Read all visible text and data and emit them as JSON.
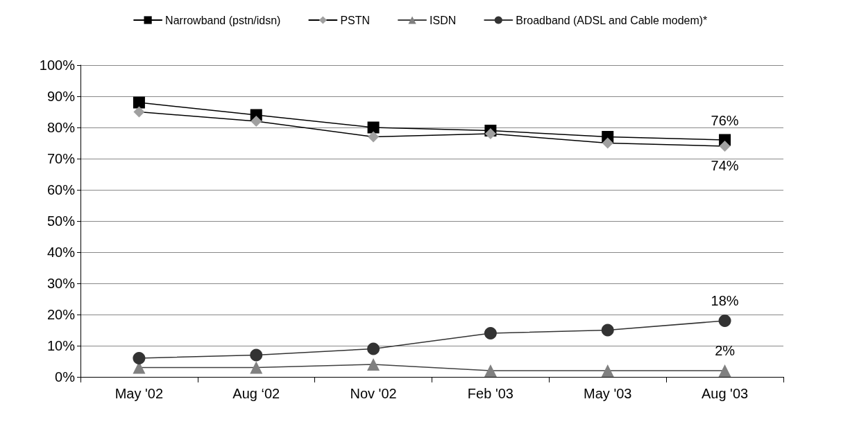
{
  "chart_data": {
    "type": "line",
    "categories": [
      "May '02",
      "Aug ‘02",
      "Nov '02",
      "Feb '03",
      "May '03",
      "Aug '03"
    ],
    "series": [
      {
        "name": "Narrowband (pstn/idsn)",
        "color": "#000000",
        "marker": "square",
        "values": [
          88,
          84,
          80,
          79,
          77,
          76
        ],
        "value_labels": [
          null,
          null,
          null,
          null,
          null,
          "76%"
        ]
      },
      {
        "name": "PSTN",
        "color": "#a0a0a0",
        "marker": "diamond",
        "values": [
          85,
          82,
          77,
          78,
          75,
          74
        ],
        "value_labels": [
          null,
          null,
          null,
          null,
          null,
          "74%"
        ]
      },
      {
        "name": "ISDN",
        "color": "#808080",
        "marker": "triangle",
        "values": [
          3,
          3,
          4,
          2,
          2,
          2
        ],
        "value_labels": [
          null,
          null,
          null,
          null,
          null,
          "2%"
        ]
      },
      {
        "name": "Broadband (ADSL and Cable modem)*",
        "color": "#333333",
        "marker": "circle",
        "values": [
          6,
          7,
          9,
          14,
          15,
          18
        ],
        "value_labels": [
          null,
          null,
          null,
          null,
          null,
          "18%"
        ]
      }
    ],
    "ylim": [
      0,
      100
    ],
    "yticks": [
      {
        "value": 0,
        "label": "0%"
      },
      {
        "value": 10,
        "label": "10%"
      },
      {
        "value": 20,
        "label": "20%"
      },
      {
        "value": 30,
        "label": "30%"
      },
      {
        "value": 40,
        "label": "40%"
      },
      {
        "value": 50,
        "label": "50%"
      },
      {
        "value": 60,
        "label": "60%"
      },
      {
        "value": 70,
        "label": "70%"
      },
      {
        "value": 80,
        "label": "80%"
      },
      {
        "value": 90,
        "label": "90%"
      },
      {
        "value": 100,
        "label": "100%"
      }
    ],
    "grid": "y",
    "legend": "top"
  }
}
